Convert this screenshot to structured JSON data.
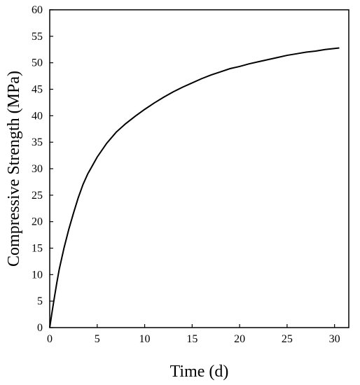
{
  "chart_data": {
    "type": "line",
    "xlabel": "Time (d)",
    "ylabel": "Compressive Strength (MPa)",
    "xlim": [
      0,
      31.5
    ],
    "ylim": [
      0,
      60
    ],
    "xticks": [
      0,
      5,
      10,
      15,
      20,
      25,
      30
    ],
    "yticks": [
      0,
      5,
      10,
      15,
      20,
      25,
      30,
      35,
      40,
      45,
      50,
      55,
      60
    ],
    "grid": false,
    "legend": "none",
    "series": [
      {
        "color": "#000000",
        "x": [
          0,
          0.25,
          0.5,
          0.75,
          1,
          1.5,
          2,
          2.5,
          3,
          3.5,
          4,
          4.5,
          5,
          6,
          7,
          8,
          9,
          10,
          11,
          12,
          13,
          14,
          15,
          16,
          17,
          18,
          19,
          20,
          21,
          22,
          23,
          24,
          25,
          26,
          27,
          28,
          29,
          30,
          30.5
        ],
        "y": [
          0,
          3,
          5.8,
          8.5,
          11,
          15,
          18.5,
          21.6,
          24.5,
          27,
          29,
          30.6,
          32.2,
          34.8,
          36.9,
          38.5,
          39.9,
          41.2,
          42.4,
          43.5,
          44.5,
          45.4,
          46.2,
          47,
          47.7,
          48.3,
          48.9,
          49.3,
          49.8,
          50.2,
          50.6,
          51,
          51.4,
          51.7,
          52,
          52.2,
          52.5,
          52.7,
          52.8
        ]
      }
    ]
  }
}
